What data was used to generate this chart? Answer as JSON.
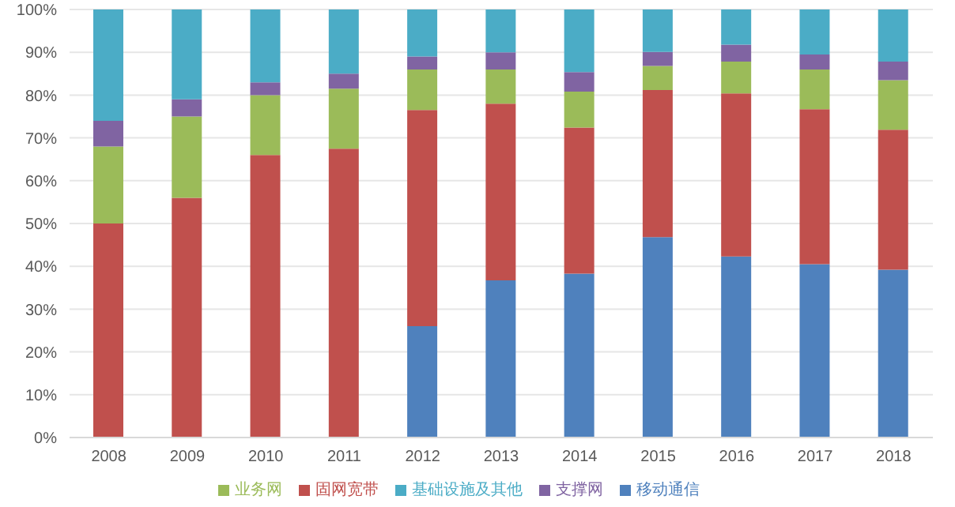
{
  "chart_data": {
    "type": "bar",
    "stacked": true,
    "categories": [
      "2008",
      "2009",
      "2010",
      "2011",
      "2012",
      "2013",
      "2014",
      "2015",
      "2016",
      "2017",
      "2018"
    ],
    "series": [
      {
        "name": "移动通信",
        "color": "#4f81bd",
        "values": [
          0,
          0,
          0,
          0,
          26,
          36.7,
          38.3,
          46.8,
          42.3,
          40.5,
          39.2
        ]
      },
      {
        "name": "固网宽带",
        "color": "#c0504d",
        "values": [
          50,
          56,
          66,
          67.5,
          50.5,
          41.3,
          34.1,
          34.4,
          38.1,
          36.2,
          32.7
        ]
      },
      {
        "name": "业务网",
        "color": "#9bbb59",
        "values": [
          18,
          19,
          14,
          14,
          9.5,
          8,
          8.4,
          5.6,
          7.4,
          9.3,
          11.6
        ]
      },
      {
        "name": "支撑网",
        "color": "#8064a2",
        "values": [
          6,
          4,
          3,
          3.5,
          3,
          4,
          4.6,
          3.3,
          4,
          3.5,
          4.3
        ]
      },
      {
        "name": "基础设施及其他",
        "color": "#4bacc6",
        "values": [
          26,
          21,
          17,
          15,
          11,
          10,
          14.6,
          9.9,
          8.2,
          10.5,
          12.2
        ]
      }
    ],
    "ylim": [
      0,
      100
    ],
    "yticks": [
      {
        "value": 0,
        "label": "0%"
      },
      {
        "value": 10,
        "label": "10%"
      },
      {
        "value": 20,
        "label": "20%"
      },
      {
        "value": 30,
        "label": "30%"
      },
      {
        "value": 40,
        "label": "40%"
      },
      {
        "value": 50,
        "label": "50%"
      },
      {
        "value": 60,
        "label": "60%"
      },
      {
        "value": 70,
        "label": "70%"
      },
      {
        "value": 80,
        "label": "80%"
      },
      {
        "value": 90,
        "label": "90%"
      },
      {
        "value": 100,
        "label": "100%"
      }
    ],
    "grid": "y",
    "legend": "bottom"
  }
}
